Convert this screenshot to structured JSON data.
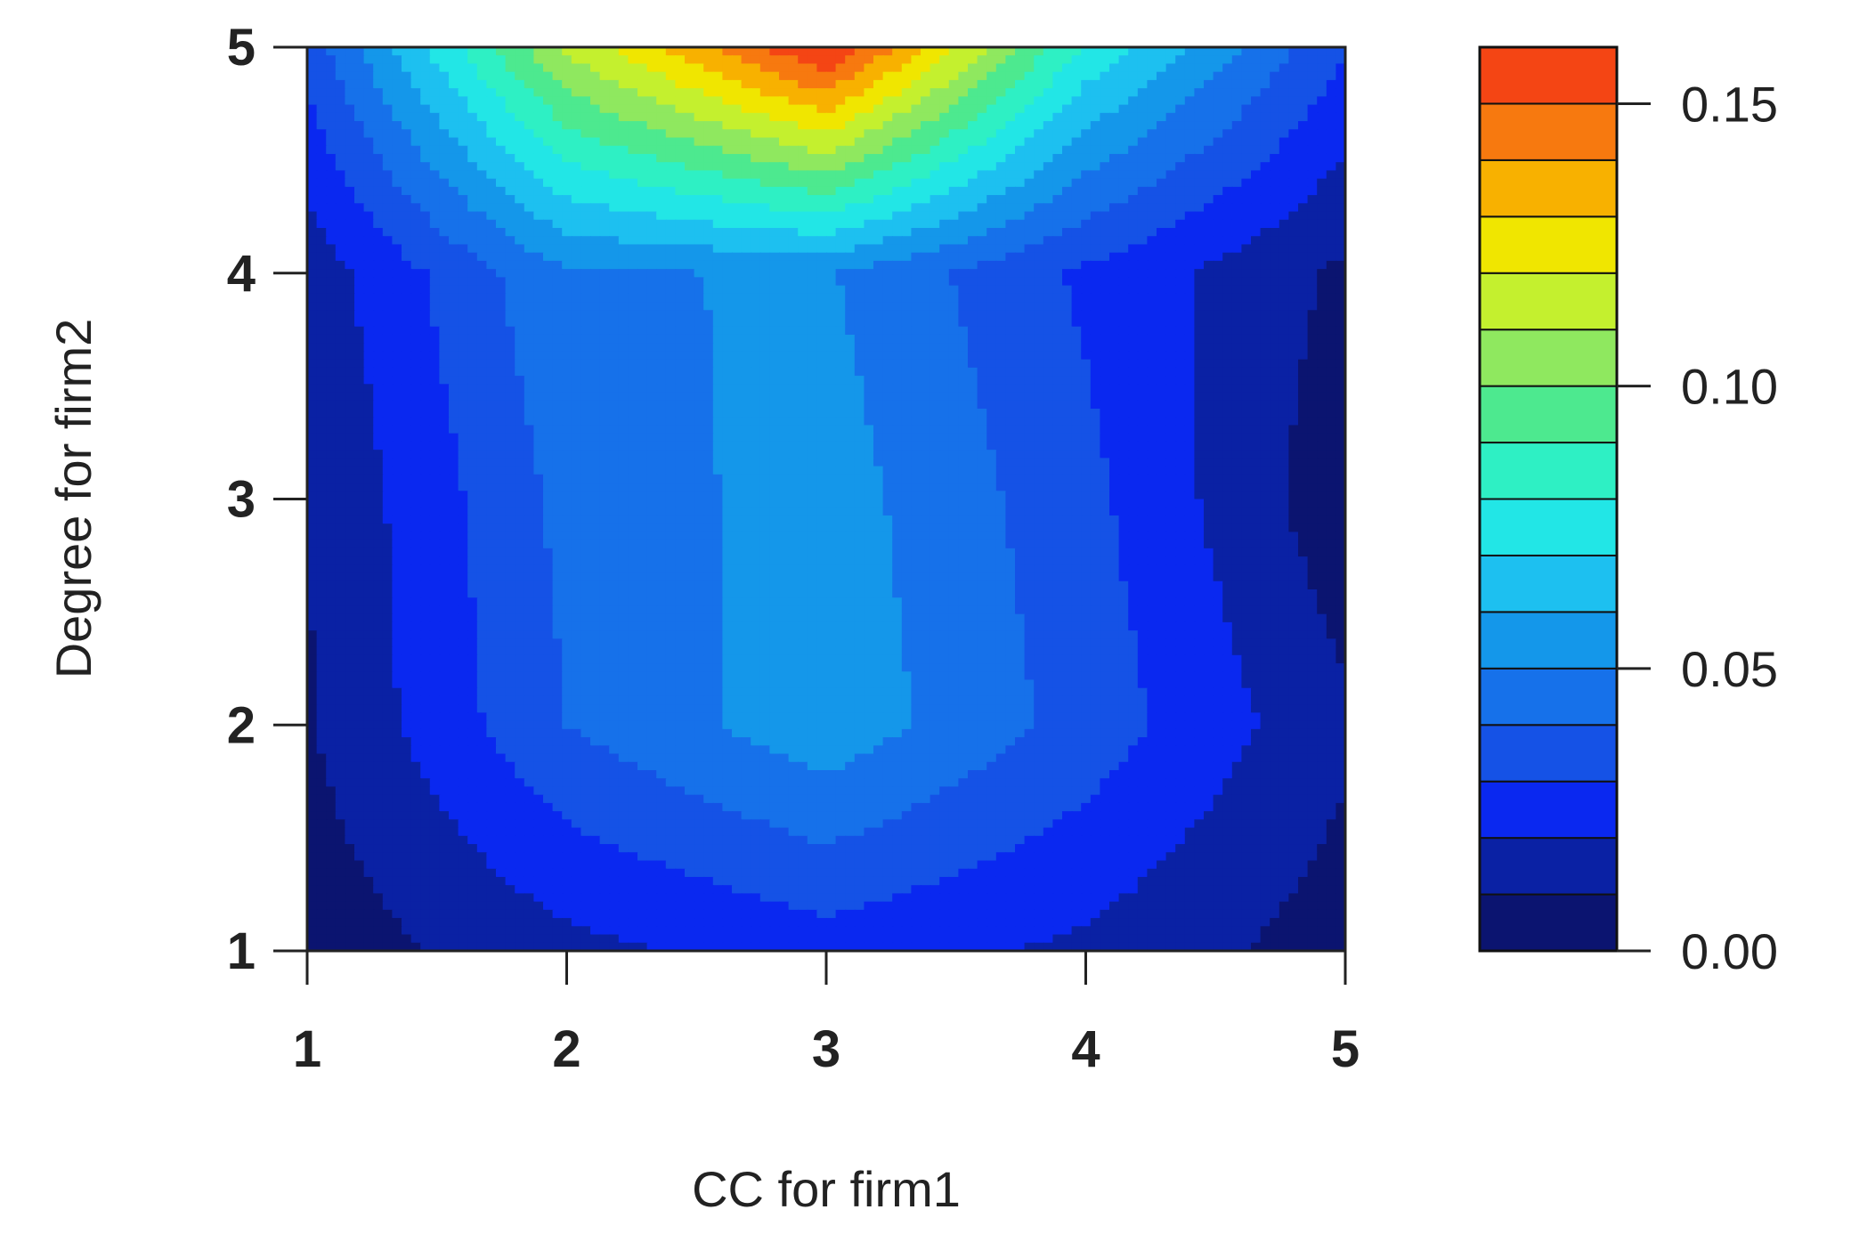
{
  "chart_data": {
    "type": "heatmap",
    "subtype": "filled-contour",
    "xlabel": "CC for firm1",
    "ylabel": "Degree for firm2",
    "x": [
      1,
      2,
      3,
      4,
      5
    ],
    "y": [
      1,
      2,
      3,
      4,
      5
    ],
    "xlim": [
      1,
      5
    ],
    "ylim": [
      1,
      5
    ],
    "x_ticks": [
      "1",
      "2",
      "3",
      "4",
      "5"
    ],
    "y_ticks": [
      "1",
      "2",
      "3",
      "4",
      "5"
    ],
    "z": [
      [
        0.004,
        0.017,
        0.025,
        0.018,
        0.005
      ],
      [
        0.009,
        0.04,
        0.057,
        0.036,
        0.012
      ],
      [
        0.01,
        0.043,
        0.055,
        0.033,
        0.003
      ],
      [
        0.014,
        0.049,
        0.051,
        0.028,
        0.008
      ],
      [
        0.034,
        0.112,
        0.162,
        0.078,
        0.031
      ]
    ],
    "levels": [
      0,
      0.01,
      0.02,
      0.03,
      0.04,
      0.05,
      0.06,
      0.07,
      0.08,
      0.09,
      0.1,
      0.11,
      0.12,
      0.13,
      0.14,
      0.15,
      0.16
    ],
    "colors": [
      "#0b1470",
      "#0a21a4",
      "#0a28f0",
      "#1552e6",
      "#1671ea",
      "#1497ea",
      "#1dc0f0",
      "#22e6e6",
      "#2ef0c4",
      "#4de98f",
      "#8fe85f",
      "#c4f02e",
      "#f0e600",
      "#f8b100",
      "#f7790f",
      "#f44514",
      "#f00000"
    ],
    "colorbar_ticks": [
      "0.00",
      "0.05",
      "0.10",
      "0.15"
    ],
    "colorbar_tick_values": [
      0,
      0.05,
      0.1,
      0.15
    ],
    "grid": false,
    "legend": "colorbar-right"
  }
}
